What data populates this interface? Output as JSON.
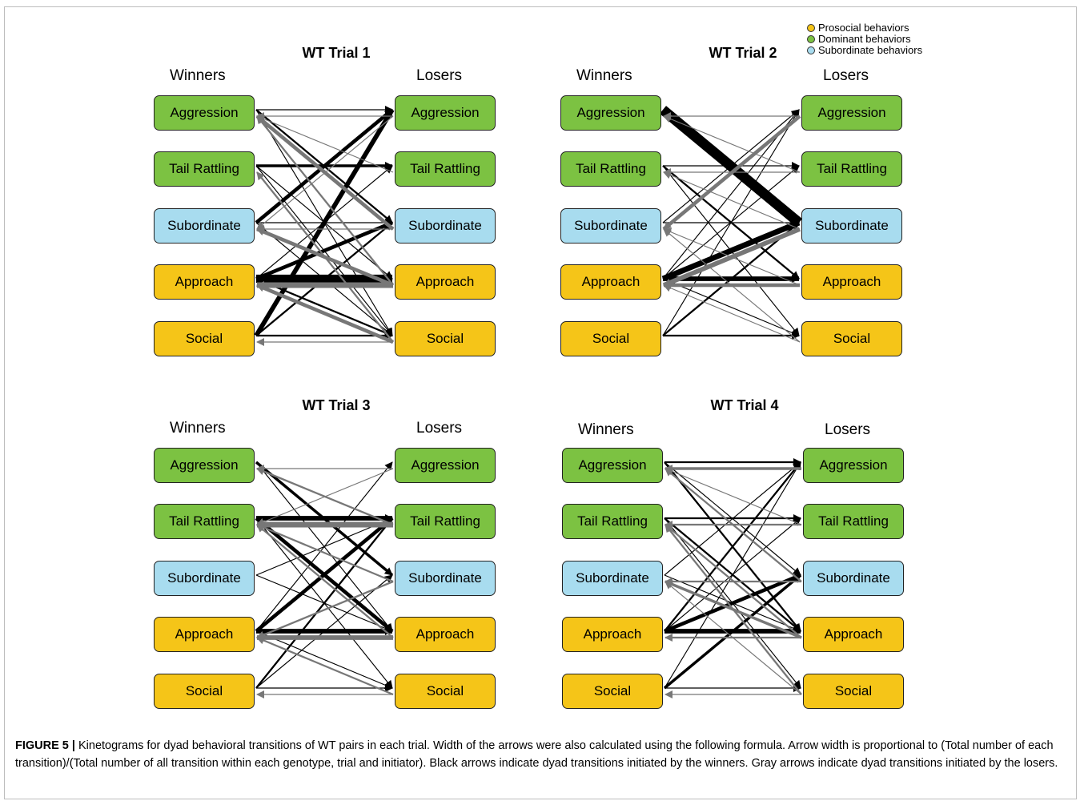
{
  "colors": {
    "prosocial": "#f5c518",
    "dominant": "#7cc242",
    "subordinate": "#a8dcef",
    "winner_arrow": "#000000",
    "loser_arrow": "#777777"
  },
  "legend": [
    {
      "label": "Prosocial behaviors",
      "category": "prosocial"
    },
    {
      "label": "Dominant behaviors",
      "category": "dominant"
    },
    {
      "label": "Subordinate behaviors",
      "category": "subordinate"
    }
  ],
  "column_headers": {
    "left": "Winners",
    "right": "Losers"
  },
  "nodes": [
    {
      "label": "Aggression",
      "category": "dominant"
    },
    {
      "label": "Tail Rattling",
      "category": "dominant"
    },
    {
      "label": "Subordinate",
      "category": "subordinate"
    },
    {
      "label": "Approach",
      "category": "prosocial"
    },
    {
      "label": "Social",
      "category": "prosocial"
    }
  ],
  "panels": [
    {
      "title": "WT Trial 1",
      "transitions": [
        {
          "from": 0,
          "to": 0,
          "w": 1,
          "by": "winner"
        },
        {
          "from": 0,
          "to": 2,
          "w": 2,
          "by": "winner"
        },
        {
          "from": 0,
          "to": 4,
          "w": 1,
          "by": "winner"
        },
        {
          "from": 1,
          "to": 1,
          "w": 3,
          "by": "winner"
        },
        {
          "from": 1,
          "to": 3,
          "w": 1,
          "by": "winner"
        },
        {
          "from": 1,
          "to": 4,
          "w": 1,
          "by": "winner"
        },
        {
          "from": 2,
          "to": 0,
          "w": 4,
          "by": "winner"
        },
        {
          "from": 2,
          "to": 2,
          "w": 1,
          "by": "winner"
        },
        {
          "from": 2,
          "to": 4,
          "w": 1,
          "by": "winner"
        },
        {
          "from": 3,
          "to": 3,
          "w": 9,
          "by": "winner"
        },
        {
          "from": 3,
          "to": 2,
          "w": 4,
          "by": "winner"
        },
        {
          "from": 3,
          "to": 1,
          "w": 1,
          "by": "winner"
        },
        {
          "from": 3,
          "to": 4,
          "w": 2,
          "by": "winner"
        },
        {
          "from": 4,
          "to": 0,
          "w": 5,
          "by": "winner"
        },
        {
          "from": 4,
          "to": 2,
          "w": 2,
          "by": "winner"
        },
        {
          "from": 4,
          "to": 4,
          "w": 2,
          "by": "winner"
        },
        {
          "from": 0,
          "to": 0,
          "w": 1,
          "by": "loser"
        },
        {
          "from": 0,
          "to": 2,
          "w": 1,
          "by": "loser"
        },
        {
          "from": 1,
          "to": 0,
          "w": 1,
          "by": "loser"
        },
        {
          "from": 2,
          "to": 0,
          "w": 4,
          "by": "loser"
        },
        {
          "from": 2,
          "to": 2,
          "w": 1,
          "by": "loser"
        },
        {
          "from": 3,
          "to": 0,
          "w": 2,
          "by": "loser"
        },
        {
          "from": 3,
          "to": 2,
          "w": 4,
          "by": "loser"
        },
        {
          "from": 3,
          "to": 3,
          "w": 6,
          "by": "loser"
        },
        {
          "from": 4,
          "to": 1,
          "w": 2,
          "by": "loser"
        },
        {
          "from": 4,
          "to": 3,
          "w": 4,
          "by": "loser"
        },
        {
          "from": 4,
          "to": 4,
          "w": 1,
          "by": "loser"
        }
      ]
    },
    {
      "title": "WT Trial 2",
      "transitions": [
        {
          "from": 0,
          "to": 2,
          "w": 11,
          "by": "winner"
        },
        {
          "from": 1,
          "to": 1,
          "w": 1,
          "by": "winner"
        },
        {
          "from": 1,
          "to": 3,
          "w": 2,
          "by": "winner"
        },
        {
          "from": 1,
          "to": 4,
          "w": 1,
          "by": "winner"
        },
        {
          "from": 2,
          "to": 0,
          "w": 1,
          "by": "winner"
        },
        {
          "from": 2,
          "to": 2,
          "w": 1,
          "by": "winner"
        },
        {
          "from": 3,
          "to": 3,
          "w": 5,
          "by": "winner"
        },
        {
          "from": 3,
          "to": 2,
          "w": 6,
          "by": "winner"
        },
        {
          "from": 3,
          "to": 0,
          "w": 1,
          "by": "winner"
        },
        {
          "from": 3,
          "to": 1,
          "w": 1,
          "by": "winner"
        },
        {
          "from": 3,
          "to": 4,
          "w": 1,
          "by": "winner"
        },
        {
          "from": 4,
          "to": 4,
          "w": 2,
          "by": "winner"
        },
        {
          "from": 4,
          "to": 2,
          "w": 2,
          "by": "winner"
        },
        {
          "from": 4,
          "to": 0,
          "w": 1,
          "by": "winner"
        },
        {
          "from": 0,
          "to": 0,
          "w": 1,
          "by": "loser"
        },
        {
          "from": 0,
          "to": 2,
          "w": 4,
          "by": "loser"
        },
        {
          "from": 1,
          "to": 0,
          "w": 1,
          "by": "loser"
        },
        {
          "from": 1,
          "to": 1,
          "w": 1,
          "by": "loser"
        },
        {
          "from": 2,
          "to": 3,
          "w": 5,
          "by": "loser"
        },
        {
          "from": 2,
          "to": 1,
          "w": 1,
          "by": "loser"
        },
        {
          "from": 3,
          "to": 3,
          "w": 4,
          "by": "loser"
        },
        {
          "from": 3,
          "to": 2,
          "w": 1,
          "by": "loser"
        },
        {
          "from": 4,
          "to": 2,
          "w": 1,
          "by": "loser"
        },
        {
          "from": 4,
          "to": 3,
          "w": 1,
          "by": "loser"
        }
      ]
    },
    {
      "title": "WT Trial 3",
      "transitions": [
        {
          "from": 0,
          "to": 2,
          "w": 3,
          "by": "winner"
        },
        {
          "from": 0,
          "to": 3,
          "w": 1,
          "by": "winner"
        },
        {
          "from": 1,
          "to": 1,
          "w": 5,
          "by": "winner"
        },
        {
          "from": 1,
          "to": 3,
          "w": 4,
          "by": "winner"
        },
        {
          "from": 1,
          "to": 4,
          "w": 1,
          "by": "winner"
        },
        {
          "from": 2,
          "to": 1,
          "w": 1,
          "by": "winner"
        },
        {
          "from": 2,
          "to": 3,
          "w": 1,
          "by": "winner"
        },
        {
          "from": 3,
          "to": 3,
          "w": 5,
          "by": "winner"
        },
        {
          "from": 3,
          "to": 1,
          "w": 4,
          "by": "winner"
        },
        {
          "from": 3,
          "to": 0,
          "w": 1,
          "by": "winner"
        },
        {
          "from": 3,
          "to": 4,
          "w": 1,
          "by": "winner"
        },
        {
          "from": 4,
          "to": 1,
          "w": 2,
          "by": "winner"
        },
        {
          "from": 4,
          "to": 4,
          "w": 1,
          "by": "winner"
        },
        {
          "from": 4,
          "to": 2,
          "w": 1,
          "by": "winner"
        },
        {
          "from": 0,
          "to": 0,
          "w": 1,
          "by": "loser"
        },
        {
          "from": 0,
          "to": 1,
          "w": 1,
          "by": "loser"
        },
        {
          "from": 1,
          "to": 1,
          "w": 6,
          "by": "loser"
        },
        {
          "from": 1,
          "to": 0,
          "w": 2,
          "by": "loser"
        },
        {
          "from": 2,
          "to": 1,
          "w": 2,
          "by": "loser"
        },
        {
          "from": 2,
          "to": 3,
          "w": 2,
          "by": "loser"
        },
        {
          "from": 3,
          "to": 3,
          "w": 5,
          "by": "loser"
        },
        {
          "from": 3,
          "to": 1,
          "w": 2,
          "by": "loser"
        },
        {
          "from": 4,
          "to": 3,
          "w": 2,
          "by": "loser"
        },
        {
          "from": 4,
          "to": 4,
          "w": 1,
          "by": "loser"
        }
      ]
    },
    {
      "title": "WT Trial 4",
      "transitions": [
        {
          "from": 0,
          "to": 0,
          "w": 2,
          "by": "winner"
        },
        {
          "from": 0,
          "to": 3,
          "w": 2,
          "by": "winner"
        },
        {
          "from": 0,
          "to": 2,
          "w": 1,
          "by": "winner"
        },
        {
          "from": 1,
          "to": 1,
          "w": 2,
          "by": "winner"
        },
        {
          "from": 1,
          "to": 3,
          "w": 2,
          "by": "winner"
        },
        {
          "from": 1,
          "to": 4,
          "w": 1,
          "by": "winner"
        },
        {
          "from": 2,
          "to": 0,
          "w": 1,
          "by": "winner"
        },
        {
          "from": 2,
          "to": 3,
          "w": 1,
          "by": "winner"
        },
        {
          "from": 3,
          "to": 3,
          "w": 5,
          "by": "winner"
        },
        {
          "from": 3,
          "to": 2,
          "w": 4,
          "by": "winner"
        },
        {
          "from": 3,
          "to": 0,
          "w": 2,
          "by": "winner"
        },
        {
          "from": 3,
          "to": 1,
          "w": 1,
          "by": "winner"
        },
        {
          "from": 4,
          "to": 4,
          "w": 1,
          "by": "winner"
        },
        {
          "from": 4,
          "to": 2,
          "w": 3,
          "by": "winner"
        },
        {
          "from": 4,
          "to": 0,
          "w": 1,
          "by": "winner"
        },
        {
          "from": 0,
          "to": 0,
          "w": 3,
          "by": "loser"
        },
        {
          "from": 1,
          "to": 1,
          "w": 2,
          "by": "loser"
        },
        {
          "from": 1,
          "to": 0,
          "w": 1,
          "by": "loser"
        },
        {
          "from": 2,
          "to": 0,
          "w": 2,
          "by": "loser"
        },
        {
          "from": 2,
          "to": 2,
          "w": 2,
          "by": "loser"
        },
        {
          "from": 3,
          "to": 3,
          "w": 2,
          "by": "loser"
        },
        {
          "from": 3,
          "to": 2,
          "w": 3,
          "by": "loser"
        },
        {
          "from": 3,
          "to": 1,
          "w": 2,
          "by": "loser"
        },
        {
          "from": 4,
          "to": 1,
          "w": 2,
          "by": "loser"
        },
        {
          "from": 4,
          "to": 4,
          "w": 1,
          "by": "loser"
        },
        {
          "from": 4,
          "to": 2,
          "w": 1,
          "by": "loser"
        }
      ]
    }
  ],
  "caption": {
    "label": "FIGURE 5 |",
    "text": " Kinetograms for dyad behavioral transitions of WT pairs in each trial. Width of the arrows were also calculated using the following formula. Arrow width is proportional to (Total number of each transition)/(Total number of all transition within each genotype, trial and initiator). Black arrows indicate dyad transitions initiated by the winners. Gray arrows indicate dyad transitions initiated by the losers."
  }
}
